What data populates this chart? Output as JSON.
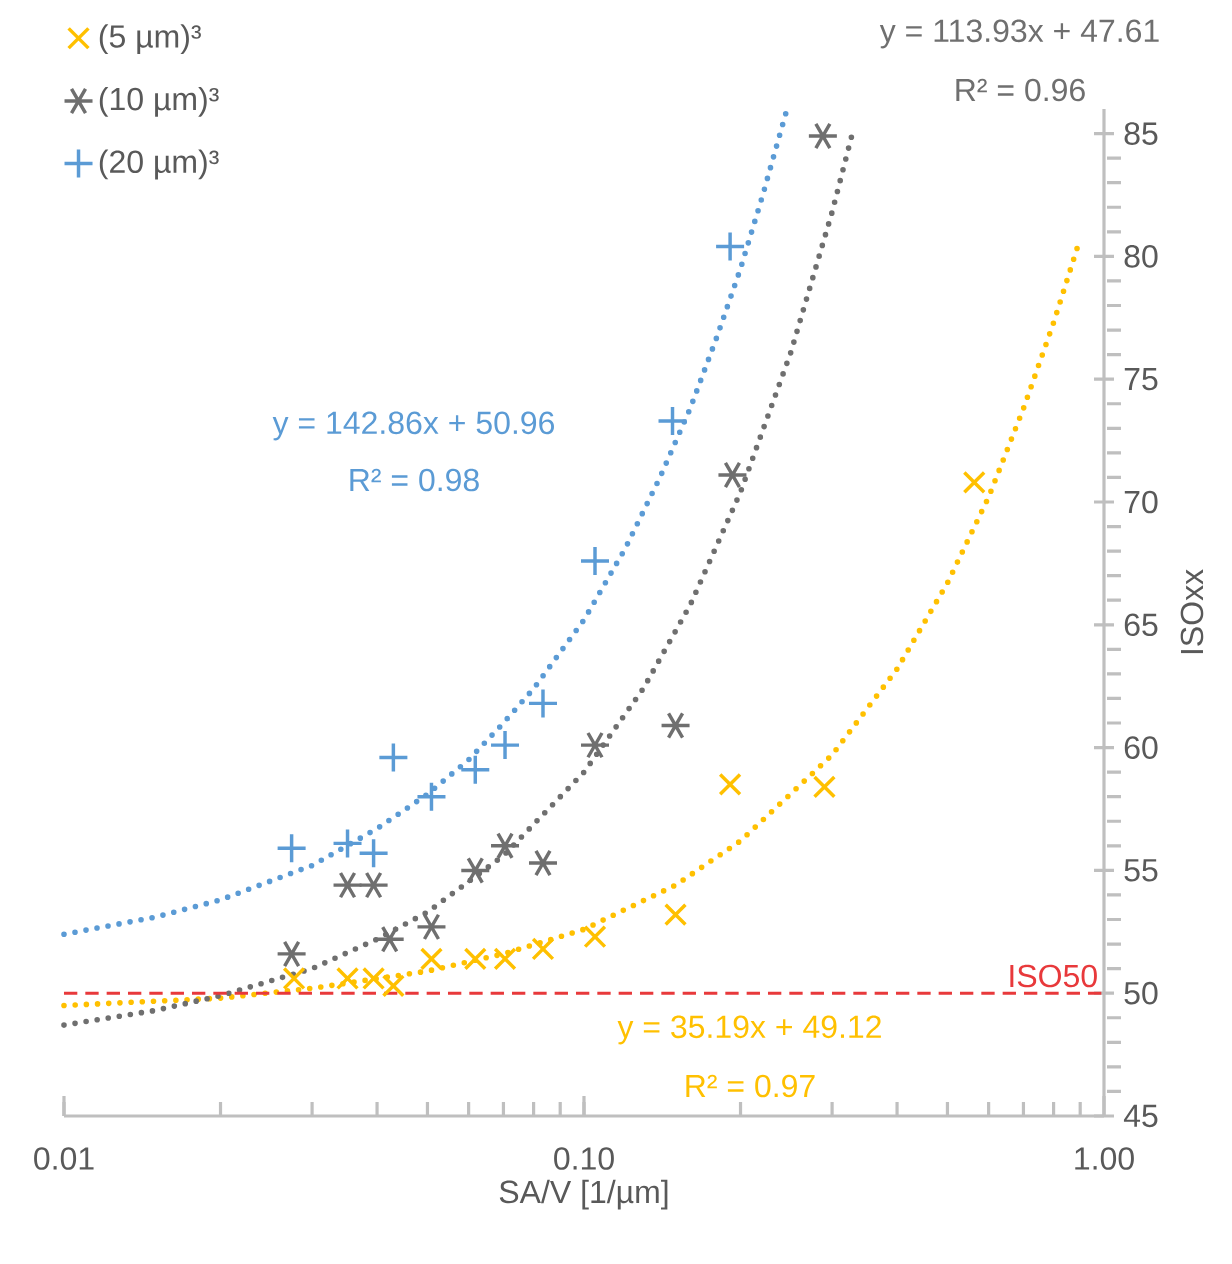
{
  "chart_data": {
    "type": "scatter",
    "xlabel": "SA/V [1/µm]",
    "ylabel": "ISOxx",
    "log": "x",
    "xlim": [
      0.01,
      1
    ],
    "xticks": [
      {
        "value": 0.01,
        "label": "0.01"
      },
      {
        "value": 0.1,
        "label": "0.10"
      },
      {
        "value": 1,
        "label": "1.00"
      }
    ],
    "ylim": [
      45,
      86
    ],
    "yticks": [
      45,
      50,
      55,
      60,
      65,
      70,
      75,
      80,
      85
    ],
    "grid": false,
    "legend": "top left",
    "series": [
      {
        "name": "(5 µm)³",
        "color": "#FFC000",
        "marker": "cross",
        "x": [
          0.0277,
          0.0351,
          0.0394,
          0.043,
          0.0509,
          0.0618,
          0.0705,
          0.0834,
          0.105,
          0.15,
          0.191,
          0.29,
          0.563
        ],
        "values": [
          50.6,
          50.6,
          50.6,
          50.3,
          51.4,
          51.4,
          51.4,
          51.8,
          52.3,
          53.2,
          58.5,
          58.4,
          70.8
        ]
      },
      {
        "name": "(10 µm)³",
        "color": "#6F6F6F",
        "x": [
          0.0274,
          0.0351,
          0.0394,
          0.0423,
          0.0509,
          0.0618,
          0.0705,
          0.0834,
          0.105,
          0.15,
          0.193,
          0.288
        ],
        "values": [
          51.6,
          54.4,
          54.4,
          52.2,
          52.7,
          55.0,
          56.0,
          55.3,
          60.1,
          60.9,
          71.1,
          84.9
        ]
      },
      {
        "name": "(20 µm)³",
        "color": "#5B9BD5",
        "marker": "plus",
        "x": [
          0.0274,
          0.0351,
          0.0394,
          0.043,
          0.0509,
          0.0618,
          0.0705,
          0.0834,
          0.105,
          0.148,
          0.191
        ],
        "values": [
          55.9,
          56.1,
          55.7,
          59.6,
          58.0,
          59.1,
          60.1,
          61.8,
          67.6,
          73.3,
          80.4
        ]
      },
      {
        "type": "line",
        "color": "#FFC000",
        "marker": "none",
        "line_style": "dotted",
        "x": [
          0.01,
          0.02,
          0.03,
          0.05,
          0.07,
          0.1,
          0.15,
          0.2,
          0.3,
          0.4,
          0.5,
          0.6,
          0.7,
          0.8,
          0.89
        ],
        "values": [
          49.5,
          49.8,
          50.2,
          50.9,
          51.6,
          52.6,
          54.4,
          56.2,
          59.7,
          63.2,
          66.7,
          70.2,
          73.8,
          77.3,
          80.4
        ]
      },
      {
        "type": "line",
        "color": "#6F6F6F",
        "marker": "none",
        "line_style": "dotted",
        "x": [
          0.01,
          0.015,
          0.02,
          0.03,
          0.04,
          0.05,
          0.07,
          0.1,
          0.13,
          0.16,
          0.2,
          0.25,
          0.3,
          0.33
        ],
        "values": [
          48.7,
          49.3,
          49.9,
          51.0,
          52.2,
          53.3,
          55.6,
          59.0,
          62.4,
          65.8,
          70.4,
          76.1,
          81.8,
          85.2
        ]
      },
      {
        "type": "line",
        "color": "#5B9BD5",
        "marker": "none",
        "line_style": "dotted",
        "x": [
          0.01,
          0.015,
          0.02,
          0.03,
          0.04,
          0.05,
          0.06,
          0.07,
          0.08,
          0.1,
          0.12,
          0.14,
          0.16,
          0.18,
          0.2,
          0.22,
          0.245
        ],
        "values": [
          52.4,
          53.1,
          53.8,
          55.2,
          56.7,
          58.1,
          59.5,
          61.0,
          62.4,
          65.2,
          68.1,
          71.0,
          73.8,
          76.7,
          79.5,
          82.4,
          85.9
        ]
      }
    ],
    "ref_lines": [
      {
        "axis": "y",
        "value": 50,
        "label": "ISO50",
        "color": "#E8393B",
        "line_style": "dashed"
      }
    ],
    "annotations": [
      "y = 142.86x + 50.96",
      "R² = 0.98",
      "y = 113.93x + 47.61",
      "R² = 0.96",
      "y = 35.19x + 49.12",
      "R² = 0.97"
    ]
  }
}
